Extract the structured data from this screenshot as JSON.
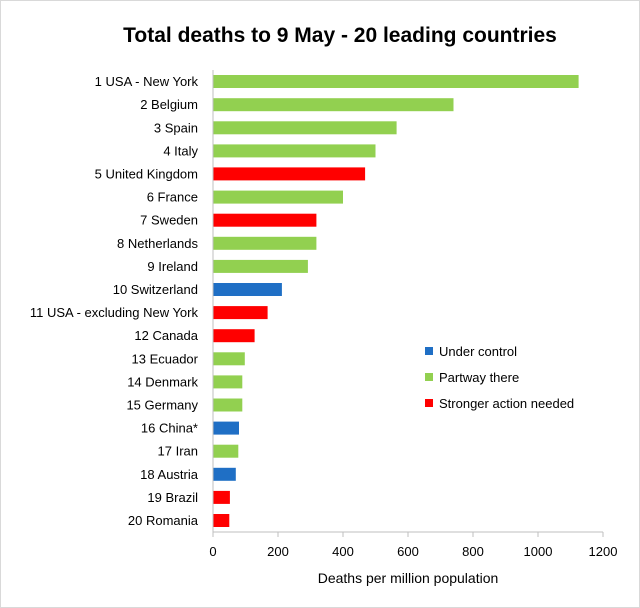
{
  "chart_data": {
    "type": "bar",
    "orientation": "horizontal",
    "title": "Total deaths to 9 May - 20 leading countries",
    "xlabel": "Deaths per million population",
    "ylabel": "",
    "xlim": [
      0,
      1200
    ],
    "xticks": [
      "0",
      "200",
      "400",
      "600",
      "800",
      "1000",
      "1200"
    ],
    "grid": false,
    "legend_position": "right-middle",
    "legend": [
      {
        "key": "control",
        "label": "Under control",
        "color": "#1f6fc5"
      },
      {
        "key": "partway",
        "label": "Partway there",
        "color": "#92d050"
      },
      {
        "key": "stronger",
        "label": "Stronger action needed",
        "color": "#ff0000"
      }
    ],
    "categories": [
      "1 USA - New York",
      "2 Belgium",
      "3 Spain",
      "4 Italy",
      "5 United Kingdom",
      "6 France",
      "7 Sweden",
      "8 Netherlands",
      "9 Ireland",
      "10 Switzerland",
      "11 USA - excluding New York",
      "12 Canada",
      "13 Ecuador",
      "14 Denmark",
      "15 Germany",
      "16 China*",
      "17 Iran",
      "18 Austria",
      "19 Brazil",
      "20 Romania"
    ],
    "values": [
      1125,
      740,
      565,
      500,
      468,
      400,
      318,
      318,
      292,
      212,
      168,
      128,
      98,
      90,
      90,
      80,
      78,
      70,
      52,
      50
    ],
    "status": [
      "partway",
      "partway",
      "partway",
      "partway",
      "stronger",
      "partway",
      "stronger",
      "partway",
      "partway",
      "control",
      "stronger",
      "stronger",
      "partway",
      "partway",
      "partway",
      "control",
      "partway",
      "control",
      "stronger",
      "stronger"
    ]
  }
}
